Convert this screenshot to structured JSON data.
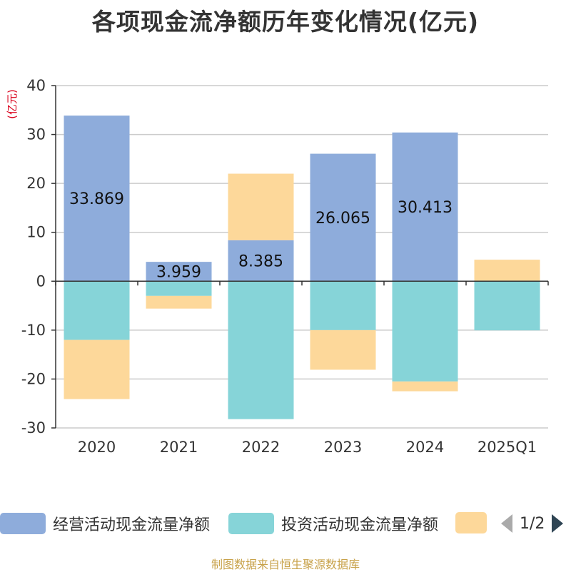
{
  "title": "各项现金流净额历年变化情况(亿元)",
  "source": "制图数据来自恒生聚源数据库",
  "legend": {
    "items": [
      "经营活动现金流量净额",
      "投资活动现金流量净额",
      ""
    ],
    "page": "1/2",
    "prev_icon": "triangle-left-icon",
    "next_icon": "triangle-right-icon"
  },
  "chart_data": {
    "type": "bar",
    "stacked": true,
    "ylabel": "(亿元)",
    "ylim": [
      -30,
      40
    ],
    "yticks": [
      -30,
      -20,
      -10,
      0,
      10,
      20,
      30,
      40
    ],
    "grid": true,
    "legend_position": "bottom",
    "categories": [
      "2020",
      "2021",
      "2022",
      "2023",
      "2024",
      "2025Q1"
    ],
    "series": [
      {
        "name": "经营活动现金流量净额",
        "color": "#8eacdb",
        "values": [
          33.869,
          3.959,
          8.385,
          26.065,
          30.413,
          -0.05
        ],
        "labels": [
          "33.869",
          "3.959",
          "8.385",
          "26.065",
          "30.413",
          ""
        ]
      },
      {
        "name": "投资活动现金流量净额",
        "color": "#86d4d8",
        "values": [
          -12.0,
          -3.0,
          -28.2,
          -10.0,
          -20.5,
          -10.0
        ],
        "labels": [
          "",
          "",
          "",
          "",
          "",
          ""
        ]
      },
      {
        "color": "#fdd89a",
        "values": [
          -12.1,
          -2.6,
          13.6,
          -8.1,
          -2.0,
          4.4
        ],
        "labels": [
          "",
          "",
          "",
          "",
          "",
          ""
        ]
      }
    ]
  }
}
